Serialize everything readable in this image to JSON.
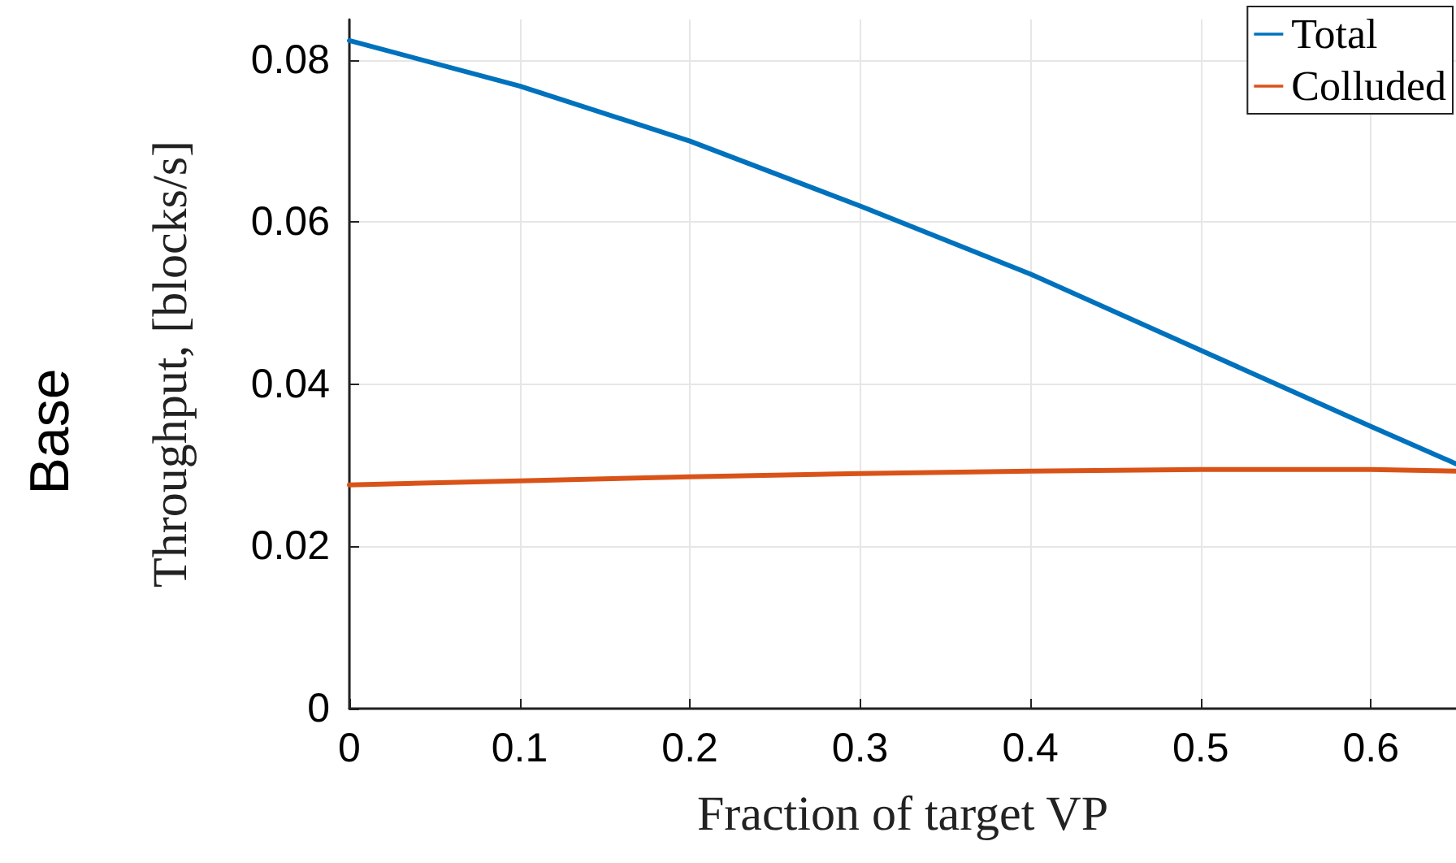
{
  "chart_data": {
    "type": "line",
    "xlabel": "Fraction of target VP",
    "ylabel": "Throughput, [blocks/s]",
    "annotations": [
      "Base"
    ],
    "x": [
      0,
      0.1,
      0.2,
      0.3,
      0.4,
      0.5,
      0.6,
      0.65
    ],
    "series": [
      {
        "name": "Total",
        "color": "#0072bd",
        "values": [
          0.0824,
          0.0768,
          0.07,
          0.062,
          0.0536,
          0.0442,
          0.0348,
          0.0302
        ]
      },
      {
        "name": "Colluded",
        "color": "#d95319",
        "values": [
          0.0276,
          0.0281,
          0.0286,
          0.029,
          0.0293,
          0.0295,
          0.0295,
          0.0293
        ]
      }
    ],
    "xlim": [
      0,
      0.65
    ],
    "xticks": [
      0,
      0.1,
      0.2,
      0.3,
      0.4,
      0.5,
      0.6
    ],
    "ylim": [
      0,
      0.085
    ],
    "yticks": [
      0,
      0.02,
      0.04,
      0.06,
      0.08
    ],
    "grid": true,
    "legend": "top right",
    "marker": "none",
    "line_style": "solid"
  }
}
